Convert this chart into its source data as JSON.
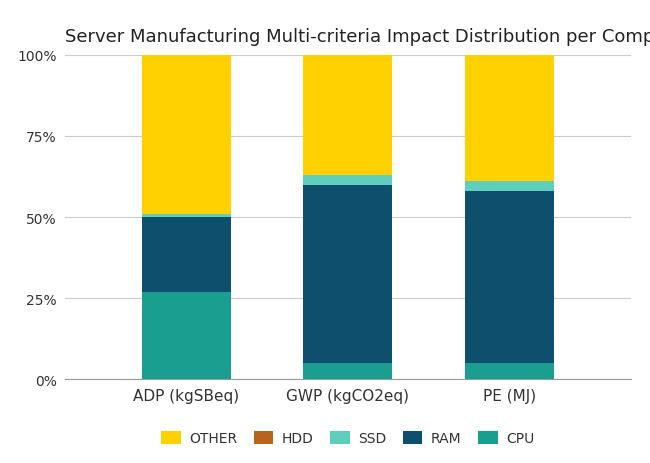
{
  "title": "Server Manufacturing Multi-criteria Impact Distribution per Component",
  "categories": [
    "ADP (kgSBeq)",
    "GWP (kgCO2eq)",
    "PE (MJ)"
  ],
  "components": [
    "CPU",
    "RAM",
    "SSD",
    "HDD",
    "OTHER"
  ],
  "colors": {
    "CPU": "#1a9e8f",
    "RAM": "#0d4f6c",
    "SSD": "#5ecfbc",
    "HDD": "#b5651d",
    "OTHER": "#ffd100"
  },
  "values": {
    "CPU": [
      27,
      5,
      5
    ],
    "RAM": [
      23,
      55,
      53
    ],
    "SSD": [
      1,
      3,
      3
    ],
    "HDD": [
      0,
      0,
      0
    ],
    "OTHER": [
      49,
      37,
      39
    ]
  },
  "ylim": [
    0,
    100
  ],
  "yticks": [
    0,
    25,
    50,
    75,
    100
  ],
  "ytick_labels": [
    "0%",
    "25%",
    "50%",
    "75%",
    "100%"
  ],
  "background_color": "#ffffff",
  "plot_bg_color": "#f5f5f5",
  "grid_color": "#cccccc",
  "title_fontsize": 13,
  "bar_width": 0.55,
  "legend_order": [
    "OTHER",
    "HDD",
    "SSD",
    "RAM",
    "CPU"
  ],
  "figsize": [
    6.5,
    4.64
  ],
  "dpi": 100
}
